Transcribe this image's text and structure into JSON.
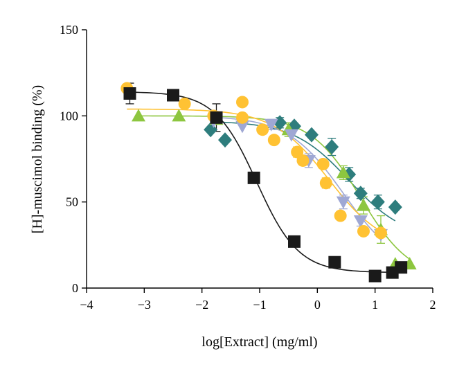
{
  "chart_data": {
    "type": "scatter",
    "xlabel": "log[Extract] (mg/ml)",
    "ylabel": "[H]-muscimol binding (%)",
    "xlim": [
      -4,
      2
    ],
    "ylim": [
      0,
      150
    ],
    "xticks": [
      -4,
      -3,
      -2,
      -1,
      0,
      1,
      2
    ],
    "yticks": [
      0,
      50,
      100,
      150
    ],
    "xtick_labels": [
      "−4",
      "−3",
      "−2",
      "−1",
      "0",
      "1",
      "2"
    ],
    "ytick_labels": [
      "0",
      "50",
      "100",
      "150"
    ],
    "grid": false,
    "legend": "none",
    "series": [
      {
        "marker": "diamond",
        "color": "#2e7d7d",
        "fit": {
          "top": 97,
          "bottom": 28,
          "logec50": 0.55,
          "hill": 0.9
        },
        "points": [
          {
            "x": -1.85,
            "y": 92
          },
          {
            "x": -1.6,
            "y": 86
          },
          {
            "x": -0.65,
            "y": 96
          },
          {
            "x": -0.4,
            "y": 94
          },
          {
            "x": -0.1,
            "y": 89
          },
          {
            "x": 0.25,
            "y": 82
          },
          {
            "x": 0.55,
            "y": 66
          },
          {
            "x": 0.75,
            "y": 55
          },
          {
            "x": 1.05,
            "y": 50
          },
          {
            "x": 1.35,
            "y": 47
          }
        ],
        "errors": [
          {
            "x": 0.25,
            "y": 82,
            "e": 5
          },
          {
            "x": 0.55,
            "y": 66,
            "e": 4
          },
          {
            "x": 0.75,
            "y": 55,
            "e": 3
          },
          {
            "x": 1.05,
            "y": 50,
            "e": 4
          },
          {
            "x": -0.65,
            "y": 96,
            "e": 3
          }
        ]
      },
      {
        "marker": "triangle-up",
        "color": "#8dc63f",
        "fit": {
          "top": 100,
          "bottom": 5,
          "logec50": 0.75,
          "hill": 1.0
        },
        "points": [
          {
            "x": -3.1,
            "y": 100
          },
          {
            "x": -2.4,
            "y": 100
          },
          {
            "x": -1.75,
            "y": 98
          },
          {
            "x": -0.5,
            "y": 92
          },
          {
            "x": 0.45,
            "y": 67
          },
          {
            "x": 0.8,
            "y": 48
          },
          {
            "x": 1.1,
            "y": 34
          },
          {
            "x": 1.35,
            "y": 14
          },
          {
            "x": 1.6,
            "y": 14
          }
        ],
        "errors": [
          {
            "x": 0.45,
            "y": 67,
            "e": 4
          },
          {
            "x": 0.8,
            "y": 48,
            "e": 5
          },
          {
            "x": 1.1,
            "y": 34,
            "e": 8
          },
          {
            "x": -0.5,
            "y": 92,
            "e": 4
          }
        ]
      },
      {
        "marker": "triangle-down",
        "color": "#9fa8d4",
        "fit": {
          "top": 100,
          "bottom": 10,
          "logec50": 0.45,
          "hill": 0.9
        },
        "points": [
          {
            "x": -1.8,
            "y": 97
          },
          {
            "x": -1.3,
            "y": 94
          },
          {
            "x": -0.8,
            "y": 95
          },
          {
            "x": -0.45,
            "y": 89
          },
          {
            "x": -0.15,
            "y": 74
          },
          {
            "x": 0.45,
            "y": 50
          },
          {
            "x": 0.75,
            "y": 39
          },
          {
            "x": 1.1,
            "y": 31
          }
        ],
        "errors": [
          {
            "x": -0.15,
            "y": 74,
            "e": 4
          },
          {
            "x": 0.45,
            "y": 50,
            "e": 4
          },
          {
            "x": 0.75,
            "y": 39,
            "e": 3
          },
          {
            "x": -0.8,
            "y": 95,
            "e": 3
          }
        ]
      },
      {
        "marker": "circle",
        "color": "#ffc233",
        "fit": {
          "top": 104,
          "bottom": 22,
          "logec50": 0.2,
          "hill": 0.9
        },
        "points": [
          {
            "x": -3.3,
            "y": 116
          },
          {
            "x": -2.3,
            "y": 107
          },
          {
            "x": -1.8,
            "y": 100
          },
          {
            "x": -1.3,
            "y": 108
          },
          {
            "x": -1.3,
            "y": 99
          },
          {
            "x": -0.95,
            "y": 92
          },
          {
            "x": -0.75,
            "y": 86
          },
          {
            "x": -0.35,
            "y": 79
          },
          {
            "x": -0.25,
            "y": 74
          },
          {
            "x": 0.15,
            "y": 61
          },
          {
            "x": 0.1,
            "y": 72
          },
          {
            "x": 0.4,
            "y": 42
          },
          {
            "x": 0.8,
            "y": 33
          },
          {
            "x": 1.1,
            "y": 32
          }
        ],
        "errors": [
          {
            "x": -0.35,
            "y": 79,
            "e": 3
          },
          {
            "x": 0.15,
            "y": 61,
            "e": 3
          }
        ]
      },
      {
        "marker": "square",
        "color": "#1a1a1a",
        "fit": {
          "top": 114,
          "bottom": 9,
          "logec50": -1.05,
          "hill": 1.2
        },
        "points": [
          {
            "x": -3.25,
            "y": 113
          },
          {
            "x": -2.5,
            "y": 112
          },
          {
            "x": -1.75,
            "y": 99
          },
          {
            "x": -1.1,
            "y": 64
          },
          {
            "x": -0.4,
            "y": 27
          },
          {
            "x": 0.3,
            "y": 15
          },
          {
            "x": 1.0,
            "y": 7
          },
          {
            "x": 1.3,
            "y": 9
          },
          {
            "x": 1.45,
            "y": 12
          }
        ],
        "errors": [
          {
            "x": -3.25,
            "y": 113,
            "e": 6
          },
          {
            "x": -1.75,
            "y": 99,
            "e": 8
          }
        ]
      }
    ]
  }
}
